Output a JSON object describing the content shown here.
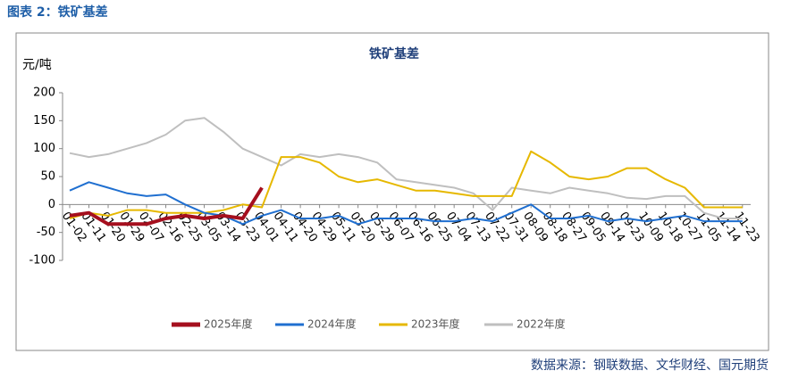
{
  "header": {
    "title": "图表 2：铁矿基差"
  },
  "source": "数据来源：钢联数据、文华财经、国元期货",
  "chart_data": {
    "type": "line",
    "title": "铁矿基差",
    "y_label": "元/吨",
    "categories": [
      "01-02",
      "01-11",
      "01-20",
      "01-29",
      "02-07",
      "02-16",
      "02-25",
      "03-05",
      "03-14",
      "03-23",
      "04-01",
      "04-11",
      "04-20",
      "04-29",
      "05-11",
      "05-20",
      "05-29",
      "06-07",
      "06-16",
      "06-25",
      "07-04",
      "07-13",
      "07-22",
      "07-31",
      "08-09",
      "08-18",
      "08-27",
      "09-05",
      "09-14",
      "09-23",
      "10-09",
      "10-18",
      "10-27",
      "11-05",
      "11-14",
      "11-23"
    ],
    "series": [
      {
        "name": "2025年度",
        "color": "#a50f1e",
        "width": 4,
        "values": [
          -20,
          -15,
          -35,
          -35,
          -35,
          -25,
          -20,
          -25,
          -20,
          -25,
          30,
          null,
          null,
          null,
          null,
          null,
          null,
          null,
          null,
          null,
          null,
          null,
          null,
          null,
          null,
          null,
          null,
          null,
          null,
          null,
          null,
          null,
          null,
          null,
          null,
          null
        ]
      },
      {
        "name": "2024年度",
        "color": "#1f6fd0",
        "width": 2,
        "values": [
          25,
          40,
          30,
          20,
          15,
          18,
          0,
          -15,
          -20,
          -35,
          -20,
          -10,
          -25,
          -25,
          -20,
          -35,
          -25,
          -25,
          -25,
          -30,
          -30,
          -25,
          -30,
          -15,
          0,
          -25,
          -25,
          -20,
          -30,
          -25,
          -30,
          -25,
          -20,
          -30,
          -30,
          -30
        ]
      },
      {
        "name": "2023年度",
        "color": "#e6b800",
        "width": 2,
        "values": [
          -25,
          -15,
          -20,
          -10,
          -10,
          -15,
          -15,
          -15,
          -10,
          0,
          -5,
          85,
          85,
          75,
          50,
          40,
          45,
          35,
          25,
          25,
          20,
          15,
          15,
          15,
          95,
          75,
          50,
          45,
          50,
          65,
          65,
          45,
          30,
          -5,
          -5,
          -5
        ]
      },
      {
        "name": "2022年度",
        "color": "#bfbfbf",
        "width": 2,
        "values": [
          92,
          85,
          90,
          100,
          110,
          125,
          150,
          155,
          130,
          100,
          85,
          70,
          90,
          85,
          90,
          85,
          75,
          45,
          40,
          35,
          30,
          20,
          -10,
          30,
          25,
          20,
          30,
          25,
          20,
          12,
          10,
          15,
          15,
          -15,
          -25,
          -25
        ]
      }
    ],
    "ylim": [
      -100,
      200
    ],
    "yticks": [
      -100,
      -50,
      0,
      50,
      100,
      150,
      200
    ],
    "legend": "bottom"
  }
}
